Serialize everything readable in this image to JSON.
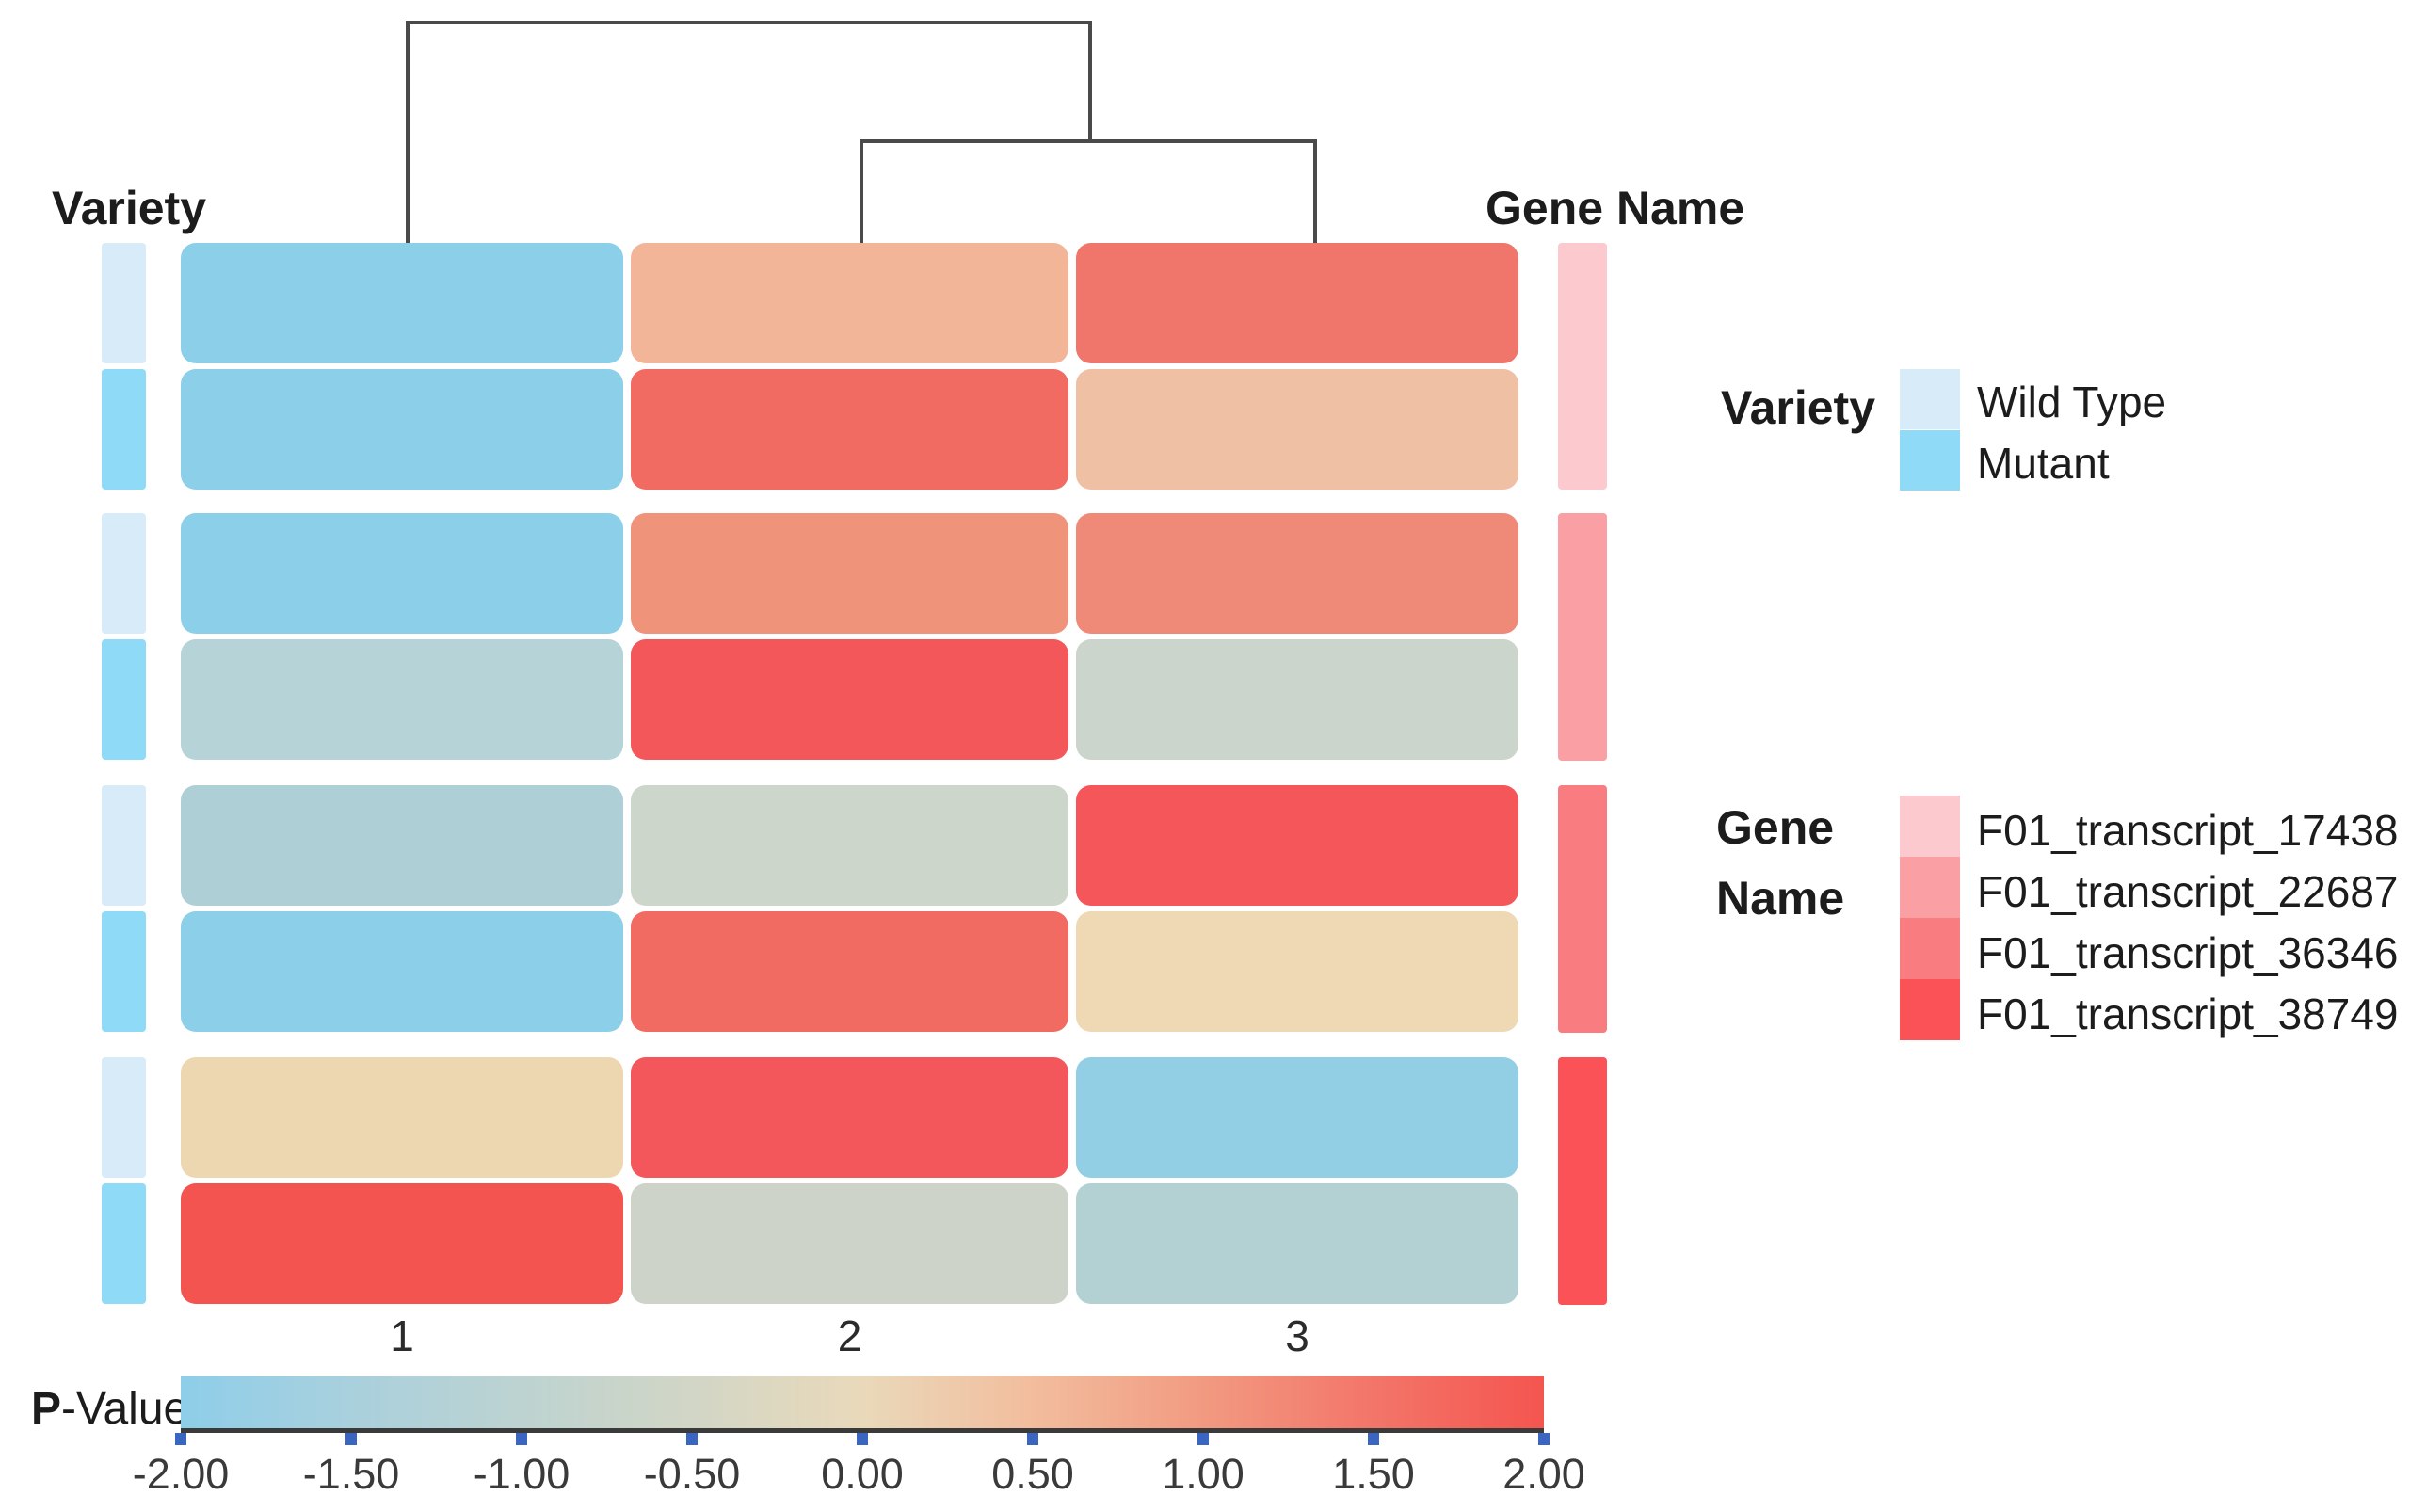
{
  "title_labels": {
    "variety_axis": "Variety",
    "gene_axis": "Gene Name"
  },
  "column_labels": [
    "1",
    "2",
    "3"
  ],
  "pvalue": {
    "bold": "P",
    "rest": "-Value"
  },
  "colorbar": {
    "ticks": [
      "-2.00",
      "-1.50",
      "-1.00",
      "-0.50",
      "0.00",
      "0.50",
      "1.00",
      "1.50",
      "2.00"
    ],
    "gradient": [
      "#8ECEE9",
      "#A9D0DD",
      "#BDD3D1",
      "#D2D6C6",
      "#E9D9BA",
      "#F2BD9D",
      "#F29A81",
      "#F37569",
      "#F4554F"
    ],
    "tick_color": "#3A66C2",
    "baseline_color": "#3a3a3a"
  },
  "legends": {
    "variety": {
      "title": "Variety",
      "items": [
        {
          "label": "Wild Type",
          "color": "#D7EBF8"
        },
        {
          "label": "Mutant",
          "color": "#8FDBF7"
        }
      ]
    },
    "gene": {
      "title_lines": [
        "Gene",
        "Name"
      ],
      "items": [
        {
          "label": "F01_transcript_17438",
          "color": "#FBC9CE"
        },
        {
          "label": "F01_transcript_22687",
          "color": "#FA9FA4"
        },
        {
          "label": "F01_transcript_36346",
          "color": "#F97D80"
        },
        {
          "label": "F01_transcript_38749",
          "color": "#FA5257"
        }
      ]
    }
  },
  "chart_data": {
    "type": "heatmap",
    "value_label": "P-Value",
    "value_range": [
      -2,
      2
    ],
    "columns": [
      "1",
      "2",
      "3"
    ],
    "column_dendrogram": "columns 2 and 3 cluster first, then that cluster joins column 1",
    "legend_position": "right",
    "rows": [
      {
        "variety": "Wild Type",
        "gene": "F01_transcript_17438",
        "colors": [
          "#8CCFE9",
          "#F2B597",
          "#F0756B"
        ],
        "approx_values": [
          -1.9,
          0.6,
          1.4
        ]
      },
      {
        "variety": "Mutant",
        "gene": "F01_transcript_17438",
        "colors": [
          "#8CCFE9",
          "#F26B62",
          "#F0C0A4"
        ],
        "approx_values": [
          -1.9,
          1.5,
          0.5
        ]
      },
      {
        "variety": "Wild Type",
        "gene": "F01_transcript_22687",
        "colors": [
          "#8CCFE9",
          "#F0937B",
          "#F08A78"
        ],
        "approx_values": [
          -1.9,
          1.1,
          1.2
        ]
      },
      {
        "variety": "Mutant",
        "gene": "F01_transcript_22687",
        "colors": [
          "#B6D3D8",
          "#F4575A",
          "#CBD5CC"
        ],
        "approx_values": [
          -1.2,
          1.9,
          -0.5
        ]
      },
      {
        "variety": "Wild Type",
        "gene": "F01_transcript_36346",
        "colors": [
          "#AFCFD7",
          "#CDD6CA",
          "#F4565A"
        ],
        "approx_values": [
          -1.3,
          -0.6,
          1.9
        ]
      },
      {
        "variety": "Mutant",
        "gene": "F01_transcript_36346",
        "colors": [
          "#8CCFE9",
          "#F26B62",
          "#EFD9B4"
        ],
        "approx_values": [
          -1.9,
          1.5,
          0.1
        ]
      },
      {
        "variety": "Wild Type",
        "gene": "F01_transcript_38749",
        "colors": [
          "#EDD7B1",
          "#F4575B",
          "#93CFE4"
        ],
        "approx_values": [
          0.1,
          1.85,
          -1.8
        ]
      },
      {
        "variety": "Mutant",
        "gene": "F01_transcript_38749",
        "colors": [
          "#F4544F",
          "#CDD3C9",
          "#B3D0D3"
        ],
        "approx_values": [
          1.95,
          -0.6,
          -1.15
        ]
      }
    ]
  }
}
